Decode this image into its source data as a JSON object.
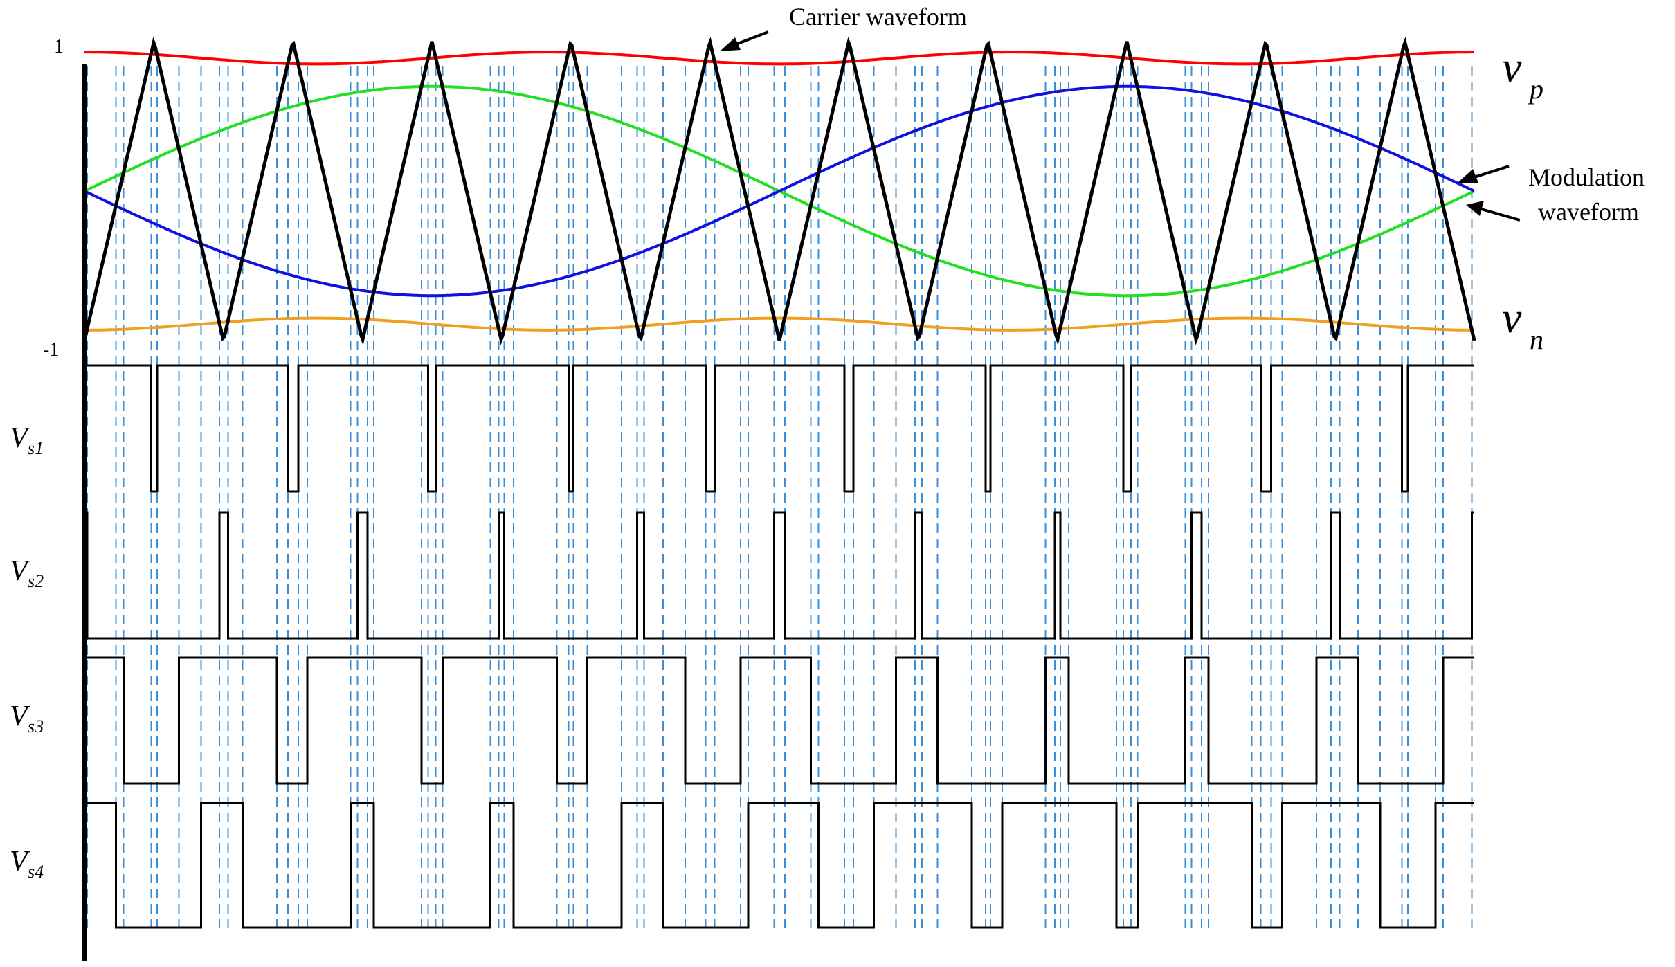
{
  "axis": {
    "top_tick": "1",
    "bottom_tick": "-1"
  },
  "annotations": {
    "carrier": "Carrier waveform",
    "modulation_line1": "Modulation",
    "modulation_line2": "waveform"
  },
  "labels": {
    "vp": {
      "main": "v",
      "sub": "p"
    },
    "vn": {
      "main": "v",
      "sub": "n"
    },
    "signals": [
      {
        "main": "V",
        "sub": "s1"
      },
      {
        "main": "V",
        "sub": "s2"
      },
      {
        "main": "V",
        "sub": "s3"
      },
      {
        "main": "V",
        "sub": "s4"
      }
    ]
  },
  "colors": {
    "carrier": "#000000",
    "vp": "#ff0000",
    "vn": "#f0a020",
    "modulation_a": "#20e020",
    "modulation_b": "#1010e0",
    "guide": "#3a8fd8",
    "pulse": "#000000"
  },
  "carrier_wave": {
    "periods": 10,
    "min": -1,
    "max": 1
  },
  "references": {
    "vp": {
      "mean": 0.89,
      "amplitude": 0.04,
      "cycles": 3
    },
    "vn": {
      "mean": -0.89,
      "amplitude": 0.04,
      "cycles": 3
    },
    "modulation_a": {
      "amplitude": 0.7,
      "phase": "sine"
    },
    "modulation_b": {
      "amplitude": 0.7,
      "phase": "negative-sine"
    }
  }
}
